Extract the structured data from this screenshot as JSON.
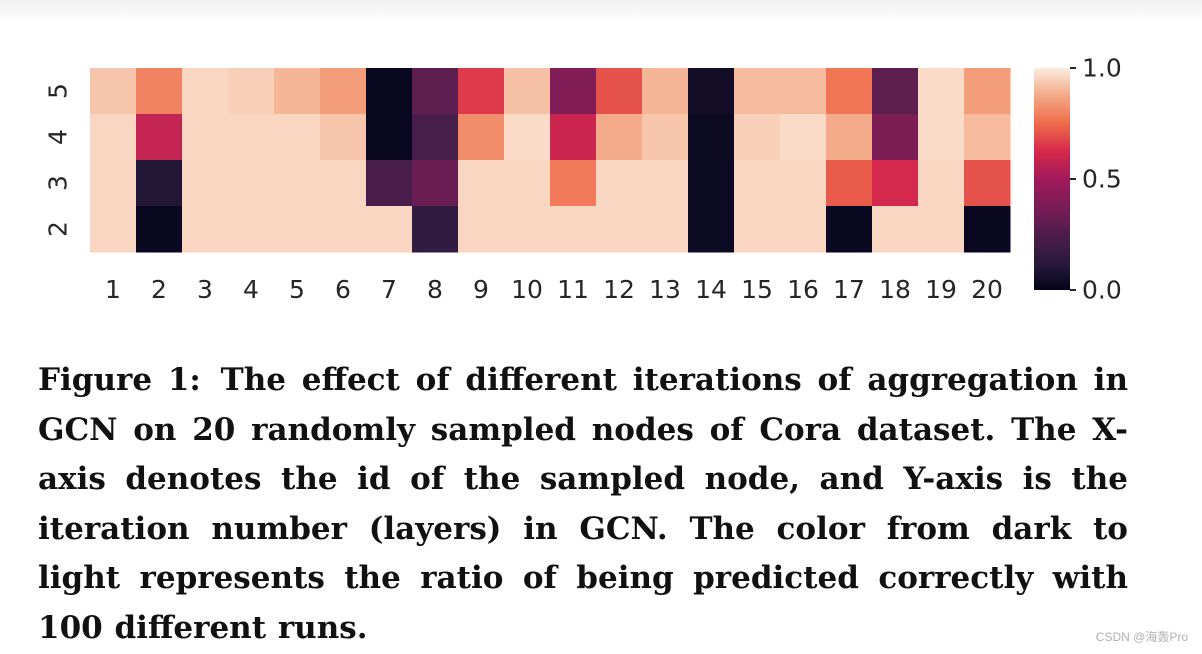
{
  "chart_data": {
    "type": "heatmap",
    "x_categories": [
      "1",
      "2",
      "3",
      "4",
      "5",
      "6",
      "7",
      "8",
      "9",
      "10",
      "11",
      "12",
      "13",
      "14",
      "15",
      "16",
      "17",
      "18",
      "19",
      "20"
    ],
    "y_categories": [
      "5",
      "4",
      "3",
      "2"
    ],
    "values": [
      [
        0.93,
        0.8,
        0.96,
        0.95,
        0.9,
        0.85,
        0.02,
        0.3,
        0.66,
        0.92,
        0.4,
        0.7,
        0.9,
        0.05,
        0.91,
        0.91,
        0.77,
        0.3,
        0.97,
        0.85
      ],
      [
        0.96,
        0.58,
        0.96,
        0.96,
        0.96,
        0.93,
        0.02,
        0.23,
        0.82,
        0.97,
        0.6,
        0.88,
        0.93,
        0.03,
        0.95,
        0.97,
        0.88,
        0.38,
        0.97,
        0.91
      ],
      [
        0.96,
        0.1,
        0.96,
        0.96,
        0.96,
        0.96,
        0.24,
        0.33,
        0.96,
        0.96,
        0.78,
        0.96,
        0.96,
        0.03,
        0.96,
        0.96,
        0.72,
        0.62,
        0.96,
        0.7
      ],
      [
        0.96,
        0.02,
        0.96,
        0.96,
        0.96,
        0.96,
        0.96,
        0.15,
        0.96,
        0.96,
        0.96,
        0.96,
        0.96,
        0.03,
        0.96,
        0.96,
        0.02,
        0.96,
        0.96,
        0.02
      ]
    ],
    "colorbar": {
      "min": 0.0,
      "max": 1.0,
      "ticks": [
        "0.0",
        "0.5",
        "1.0"
      ]
    },
    "colormap": "rocket",
    "title": "",
    "xlabel": "",
    "ylabel": ""
  },
  "caption": {
    "label": "Figure 1:",
    "text": "The effect of different iterations of aggregation in GCN on 20 randomly sampled nodes of Cora dataset. The X-axis denotes the id of the sampled node, and Y-axis is the iteration number (layers) in GCN. The color from dark to light represents the ratio of being predicted correctly with 100 different runs."
  },
  "watermark": "CSDN @海轰Pro"
}
